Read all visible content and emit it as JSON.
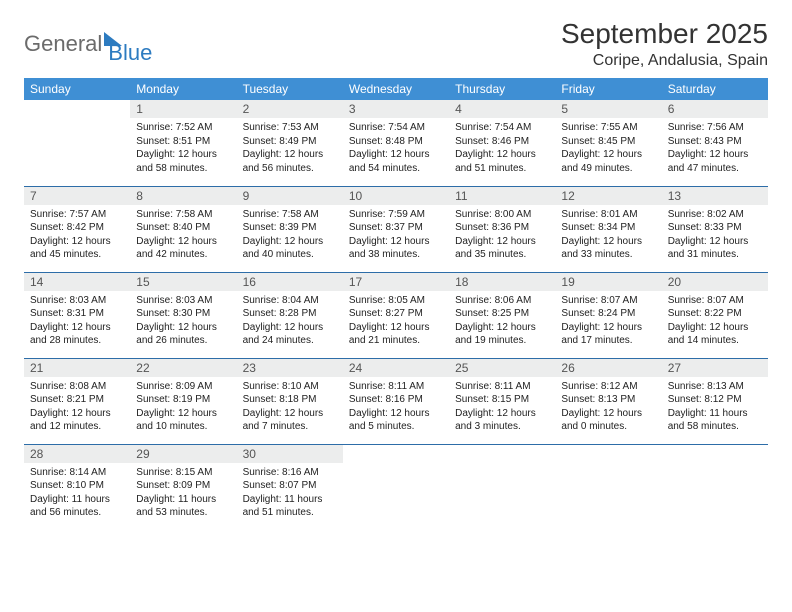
{
  "logo": {
    "text1": "General",
    "text2": "Blue"
  },
  "title": "September 2025",
  "location": "Coripe, Andalusia, Spain",
  "weekdays": [
    "Sunday",
    "Monday",
    "Tuesday",
    "Wednesday",
    "Thursday",
    "Friday",
    "Saturday"
  ],
  "colors": {
    "header_bg": "#3f8fd4",
    "header_text": "#ffffff",
    "daynum_bg": "#eceded",
    "border": "#2d6da8",
    "logo_gray": "#6b6b6b",
    "logo_blue": "#2d7bc0",
    "text": "#222222",
    "page_bg": "#ffffff"
  },
  "typography": {
    "title_fontsize": 28,
    "location_fontsize": 16,
    "weekday_fontsize": 12,
    "daynum_fontsize": 12,
    "body_fontsize": 10
  },
  "grid": [
    [
      null,
      {
        "n": "1",
        "sr": "Sunrise: 7:52 AM",
        "ss": "Sunset: 8:51 PM",
        "d1": "Daylight: 12 hours",
        "d2": "and 58 minutes."
      },
      {
        "n": "2",
        "sr": "Sunrise: 7:53 AM",
        "ss": "Sunset: 8:49 PM",
        "d1": "Daylight: 12 hours",
        "d2": "and 56 minutes."
      },
      {
        "n": "3",
        "sr": "Sunrise: 7:54 AM",
        "ss": "Sunset: 8:48 PM",
        "d1": "Daylight: 12 hours",
        "d2": "and 54 minutes."
      },
      {
        "n": "4",
        "sr": "Sunrise: 7:54 AM",
        "ss": "Sunset: 8:46 PM",
        "d1": "Daylight: 12 hours",
        "d2": "and 51 minutes."
      },
      {
        "n": "5",
        "sr": "Sunrise: 7:55 AM",
        "ss": "Sunset: 8:45 PM",
        "d1": "Daylight: 12 hours",
        "d2": "and 49 minutes."
      },
      {
        "n": "6",
        "sr": "Sunrise: 7:56 AM",
        "ss": "Sunset: 8:43 PM",
        "d1": "Daylight: 12 hours",
        "d2": "and 47 minutes."
      }
    ],
    [
      {
        "n": "7",
        "sr": "Sunrise: 7:57 AM",
        "ss": "Sunset: 8:42 PM",
        "d1": "Daylight: 12 hours",
        "d2": "and 45 minutes."
      },
      {
        "n": "8",
        "sr": "Sunrise: 7:58 AM",
        "ss": "Sunset: 8:40 PM",
        "d1": "Daylight: 12 hours",
        "d2": "and 42 minutes."
      },
      {
        "n": "9",
        "sr": "Sunrise: 7:58 AM",
        "ss": "Sunset: 8:39 PM",
        "d1": "Daylight: 12 hours",
        "d2": "and 40 minutes."
      },
      {
        "n": "10",
        "sr": "Sunrise: 7:59 AM",
        "ss": "Sunset: 8:37 PM",
        "d1": "Daylight: 12 hours",
        "d2": "and 38 minutes."
      },
      {
        "n": "11",
        "sr": "Sunrise: 8:00 AM",
        "ss": "Sunset: 8:36 PM",
        "d1": "Daylight: 12 hours",
        "d2": "and 35 minutes."
      },
      {
        "n": "12",
        "sr": "Sunrise: 8:01 AM",
        "ss": "Sunset: 8:34 PM",
        "d1": "Daylight: 12 hours",
        "d2": "and 33 minutes."
      },
      {
        "n": "13",
        "sr": "Sunrise: 8:02 AM",
        "ss": "Sunset: 8:33 PM",
        "d1": "Daylight: 12 hours",
        "d2": "and 31 minutes."
      }
    ],
    [
      {
        "n": "14",
        "sr": "Sunrise: 8:03 AM",
        "ss": "Sunset: 8:31 PM",
        "d1": "Daylight: 12 hours",
        "d2": "and 28 minutes."
      },
      {
        "n": "15",
        "sr": "Sunrise: 8:03 AM",
        "ss": "Sunset: 8:30 PM",
        "d1": "Daylight: 12 hours",
        "d2": "and 26 minutes."
      },
      {
        "n": "16",
        "sr": "Sunrise: 8:04 AM",
        "ss": "Sunset: 8:28 PM",
        "d1": "Daylight: 12 hours",
        "d2": "and 24 minutes."
      },
      {
        "n": "17",
        "sr": "Sunrise: 8:05 AM",
        "ss": "Sunset: 8:27 PM",
        "d1": "Daylight: 12 hours",
        "d2": "and 21 minutes."
      },
      {
        "n": "18",
        "sr": "Sunrise: 8:06 AM",
        "ss": "Sunset: 8:25 PM",
        "d1": "Daylight: 12 hours",
        "d2": "and 19 minutes."
      },
      {
        "n": "19",
        "sr": "Sunrise: 8:07 AM",
        "ss": "Sunset: 8:24 PM",
        "d1": "Daylight: 12 hours",
        "d2": "and 17 minutes."
      },
      {
        "n": "20",
        "sr": "Sunrise: 8:07 AM",
        "ss": "Sunset: 8:22 PM",
        "d1": "Daylight: 12 hours",
        "d2": "and 14 minutes."
      }
    ],
    [
      {
        "n": "21",
        "sr": "Sunrise: 8:08 AM",
        "ss": "Sunset: 8:21 PM",
        "d1": "Daylight: 12 hours",
        "d2": "and 12 minutes."
      },
      {
        "n": "22",
        "sr": "Sunrise: 8:09 AM",
        "ss": "Sunset: 8:19 PM",
        "d1": "Daylight: 12 hours",
        "d2": "and 10 minutes."
      },
      {
        "n": "23",
        "sr": "Sunrise: 8:10 AM",
        "ss": "Sunset: 8:18 PM",
        "d1": "Daylight: 12 hours",
        "d2": "and 7 minutes."
      },
      {
        "n": "24",
        "sr": "Sunrise: 8:11 AM",
        "ss": "Sunset: 8:16 PM",
        "d1": "Daylight: 12 hours",
        "d2": "and 5 minutes."
      },
      {
        "n": "25",
        "sr": "Sunrise: 8:11 AM",
        "ss": "Sunset: 8:15 PM",
        "d1": "Daylight: 12 hours",
        "d2": "and 3 minutes."
      },
      {
        "n": "26",
        "sr": "Sunrise: 8:12 AM",
        "ss": "Sunset: 8:13 PM",
        "d1": "Daylight: 12 hours",
        "d2": "and 0 minutes."
      },
      {
        "n": "27",
        "sr": "Sunrise: 8:13 AM",
        "ss": "Sunset: 8:12 PM",
        "d1": "Daylight: 11 hours",
        "d2": "and 58 minutes."
      }
    ],
    [
      {
        "n": "28",
        "sr": "Sunrise: 8:14 AM",
        "ss": "Sunset: 8:10 PM",
        "d1": "Daylight: 11 hours",
        "d2": "and 56 minutes."
      },
      {
        "n": "29",
        "sr": "Sunrise: 8:15 AM",
        "ss": "Sunset: 8:09 PM",
        "d1": "Daylight: 11 hours",
        "d2": "and 53 minutes."
      },
      {
        "n": "30",
        "sr": "Sunrise: 8:16 AM",
        "ss": "Sunset: 8:07 PM",
        "d1": "Daylight: 11 hours",
        "d2": "and 51 minutes."
      },
      null,
      null,
      null,
      null
    ]
  ]
}
